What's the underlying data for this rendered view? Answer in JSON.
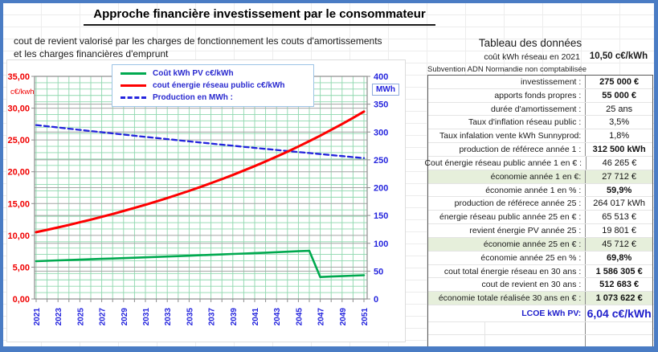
{
  "header": {
    "title": "Approche financière investissement par le consommateur",
    "subtitle_line1": "cout de revient valorisé  par les charges de  fonctionnement les couts d'amortissements",
    "subtitle_line2": "et les charges financières d'emprunt"
  },
  "colors": {
    "pv_line": "#00a94f",
    "grid_line_red": "#fe0000",
    "production_blue": "#2424dd",
    "left_axis_text": "#f00000",
    "right_axis_text": "#2424dd",
    "highlight_row": "#e6efdb",
    "outer_border": "#4a7cc4",
    "lcoe_blue": "#2020cc"
  },
  "chart_data": {
    "type": "line",
    "title": "",
    "x": [
      2021,
      2022,
      2023,
      2024,
      2025,
      2026,
      2027,
      2028,
      2029,
      2030,
      2031,
      2032,
      2033,
      2034,
      2035,
      2036,
      2037,
      2038,
      2039,
      2040,
      2041,
      2042,
      2043,
      2044,
      2045,
      2046,
      2047,
      2048,
      2049,
      2050,
      2051
    ],
    "x_tick_step": 2,
    "left_axis": {
      "label": "c€/kwh",
      "min": 0,
      "max": 35,
      "major": 5,
      "minor": 1
    },
    "right_axis": {
      "label": "MWh",
      "min": 0,
      "max": 400,
      "major": 50
    },
    "legend_labels": [
      "Coût kWh PV c€/kWh",
      "cout énergie réseau public c€/kWh",
      "Production en MWh :"
    ],
    "legend_position": "top-center",
    "grid": true,
    "series": [
      {
        "name": "Coût kWh PV c€/kWh",
        "axis": "left",
        "color": "#00a94f",
        "dash": "",
        "width": 2.6,
        "values": [
          5.94,
          6.0,
          6.06,
          6.12,
          6.18,
          6.24,
          6.3,
          6.36,
          6.42,
          6.48,
          6.54,
          6.61,
          6.67,
          6.74,
          6.8,
          6.87,
          6.94,
          7.0,
          7.07,
          7.14,
          7.21,
          7.28,
          7.35,
          7.43,
          7.5,
          7.57,
          3.45,
          3.52,
          3.59,
          3.66,
          3.73
        ]
      },
      {
        "name": "cout énergie réseau public c€/kWh",
        "axis": "left",
        "color": "#fe0000",
        "dash": "",
        "width": 3,
        "values": [
          10.5,
          10.87,
          11.25,
          11.64,
          12.05,
          12.47,
          12.91,
          13.36,
          13.83,
          14.31,
          14.81,
          15.33,
          15.87,
          16.42,
          17.0,
          17.59,
          18.21,
          18.84,
          19.5,
          20.19,
          20.89,
          21.62,
          22.38,
          23.16,
          23.97,
          24.81,
          25.68,
          26.58,
          27.51,
          28.47,
          29.47
        ]
      },
      {
        "name": "Production en MWh",
        "axis": "right",
        "color": "#2424dd",
        "dash": "6,4",
        "width": 2.3,
        "values": [
          312.5,
          310.3,
          308.1,
          306.0,
          303.8,
          301.7,
          299.6,
          297.5,
          295.4,
          293.3,
          291.3,
          289.2,
          287.2,
          285.2,
          283.2,
          281.2,
          279.3,
          277.3,
          275.4,
          273.4,
          271.5,
          269.6,
          267.7,
          265.9,
          264.0,
          262.2,
          260.3,
          258.5,
          256.7,
          254.9,
          253.1
        ]
      }
    ]
  },
  "data_table": {
    "title": "Tableau des données",
    "header_row": {
      "label": "coût kWh réseau en 2021",
      "value": "10,50 c€/kWh"
    },
    "note": "Subvention ADN Normandie non comptabilisée",
    "rows": [
      {
        "label": "investissement :",
        "value": "275 000 €",
        "bold": true
      },
      {
        "label": "apports fonds propres :",
        "value": "55 000 €",
        "bold": true
      },
      {
        "label": "durée d'amortissement :",
        "value": "25 ans"
      },
      {
        "label": "Taux d'inflation réseau public :",
        "value": "3,5%"
      },
      {
        "label": "Taux infalation vente kWh Sunnyprod:",
        "value": "1,8%"
      },
      {
        "label": "production de référece année 1 :",
        "value": "312 500 kWh",
        "bold": true
      },
      {
        "label": "Cout énergie réseau public année 1 en € :",
        "value": "46 265 €"
      },
      {
        "label": "économie année 1 en €:",
        "value": "27 712 €",
        "highlight": true
      },
      {
        "label": "économie année 1 en % :",
        "value": "59,9%",
        "bold": true
      },
      {
        "label": "production de référece année 25 :",
        "value": "264 017 kWh"
      },
      {
        "label": "énergie réseau public année 25 en € :",
        "value": "65 513 €"
      },
      {
        "label": "revient énergie PV année 25 :",
        "value": "19 801 €"
      },
      {
        "label": "économie année  25 en € :",
        "value": "45 712 €",
        "highlight": true
      },
      {
        "label": "économie année  25 en % :",
        "value": "69,8%",
        "bold": true
      },
      {
        "label": "cout total énergie réseau en 30 ans :",
        "value": "1 586 305 €",
        "bold": true
      },
      {
        "label": "cout de revient en 30 ans :",
        "value": "512 683 €",
        "bold": true
      },
      {
        "label": "économie totale réalisée 30 ans  en € :",
        "value": "1 073 622 €",
        "bold": true,
        "highlight": true
      },
      {
        "label": "LCOE kWh PV:",
        "value": "6,04 c€/kWh",
        "lcoe": true
      }
    ],
    "empty_rows": 2
  }
}
